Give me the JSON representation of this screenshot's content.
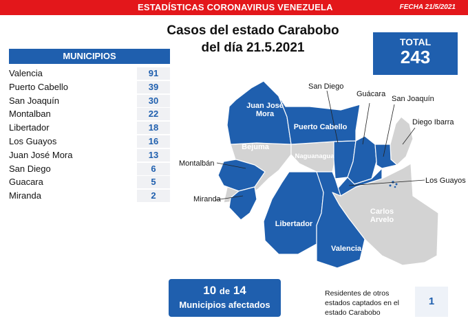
{
  "header": {
    "title": "ESTADÍSTICAS CORONAVIRUS VENEZUELA",
    "date": "FECHA 21/5/2021"
  },
  "headline": {
    "line1": "Casos del estado Carabobo",
    "line2": "del día 21.5.2021"
  },
  "total": {
    "label": "TOTAL",
    "value": "243"
  },
  "table": {
    "header": "MUNICIPIOS",
    "rows": [
      {
        "name": "Valencia",
        "value": "91"
      },
      {
        "name": "Puerto Cabello",
        "value": "39"
      },
      {
        "name": "San Joaquín",
        "value": "30"
      },
      {
        "name": "Montalban",
        "value": "22"
      },
      {
        "name": "Libertador",
        "value": "18"
      },
      {
        "name": "Los Guayos",
        "value": "16"
      },
      {
        "name": "Juan José Mora",
        "value": "13"
      },
      {
        "name": "San Diego",
        "value": "6"
      },
      {
        "name": "Guacara",
        "value": "5"
      },
      {
        "name": "Miranda",
        "value": "2"
      }
    ]
  },
  "map": {
    "colors": {
      "affected": "#1f5fae",
      "unaffected": "#d3d3d3"
    },
    "labels": {
      "juan_jose_mora_1": "Juan José",
      "juan_jose_mora_2": "Mora",
      "puerto_cabello": "Puerto Cabello",
      "bejuma": "Bejuma",
      "naguanagua": "Naguanagua",
      "san_diego": "San Diego",
      "guacara": "Guácara",
      "san_joaquin": "San Joaquín",
      "diego_ibarra": "Diego Ibarra",
      "montalban": "Montalbán",
      "miranda": "Miranda",
      "los_guayos": "Los Guayos",
      "carlos_arvelo_1": "Carlos",
      "carlos_arvelo_2": "Arvelo",
      "libertador": "Libertador",
      "valencia": "Valencia"
    }
  },
  "affected": {
    "count": "10",
    "of_word": "de",
    "total": "14",
    "description": "Municipios afectados"
  },
  "residents": {
    "text": "Residentes de otros estados captados en el estado Carabobo",
    "value": "1"
  }
}
